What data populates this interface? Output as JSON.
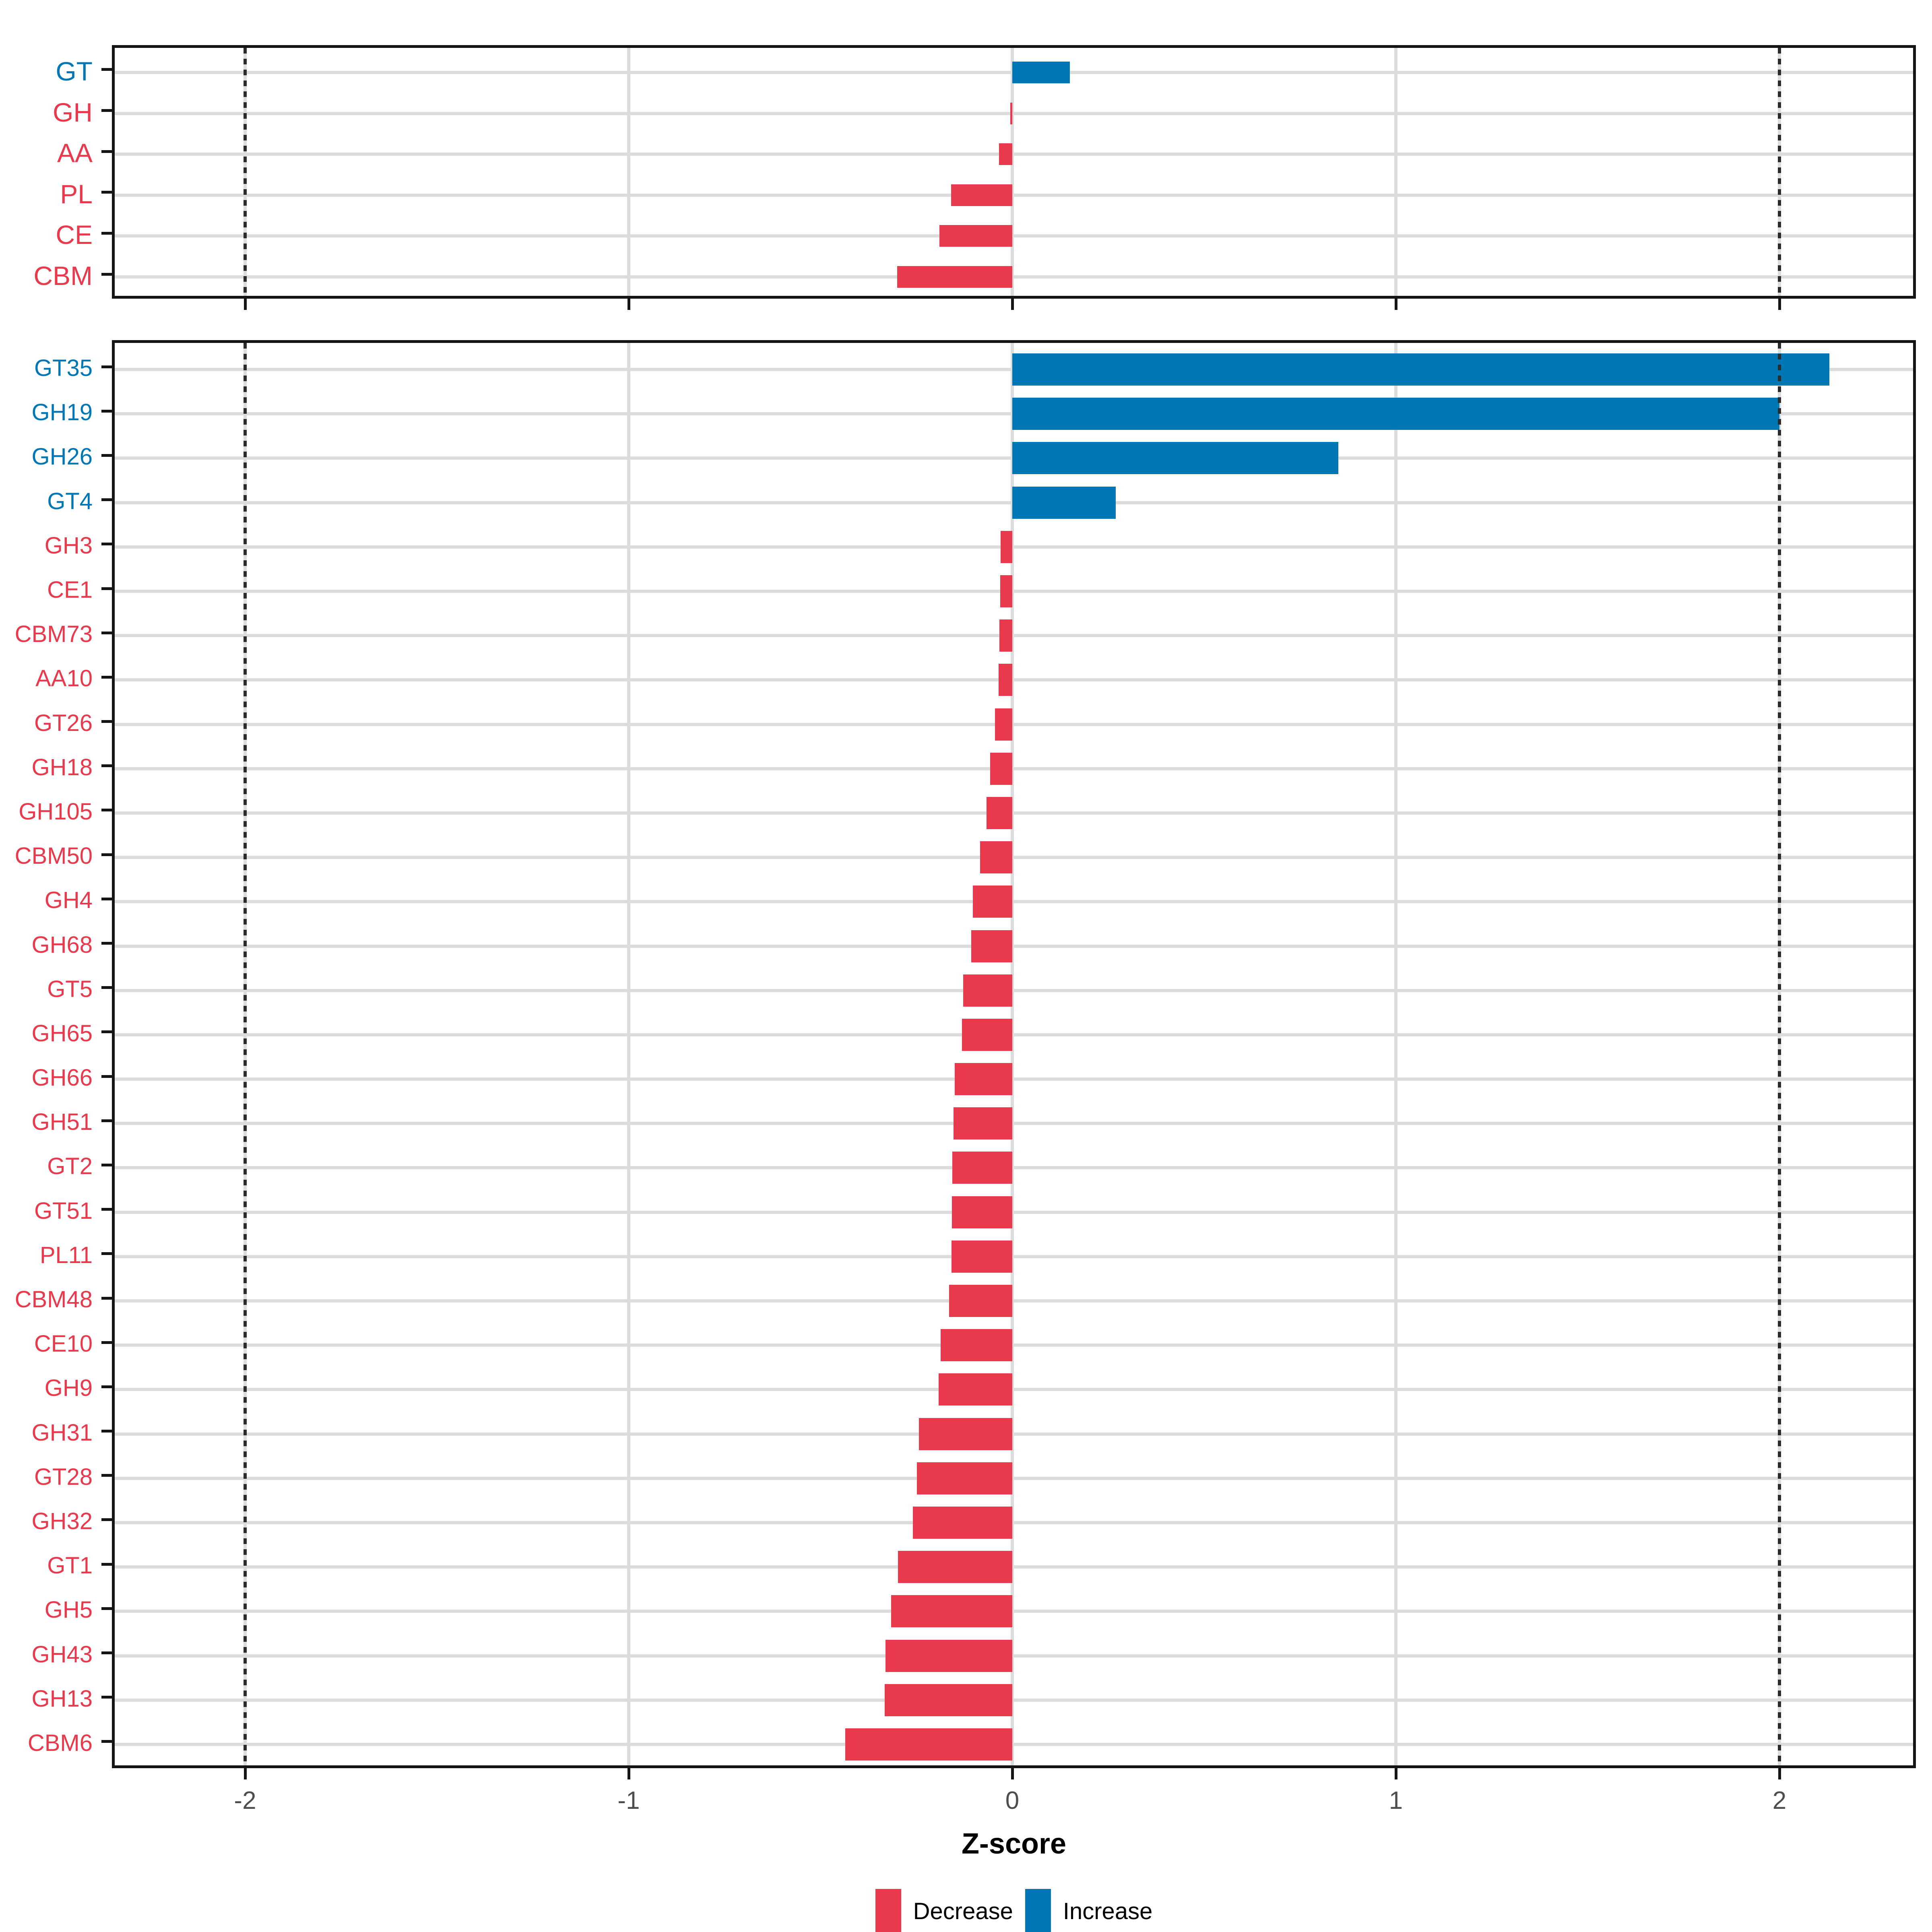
{
  "figure": {
    "background": "#ffffff"
  },
  "axis": {
    "title": "Z-score",
    "ticks": [
      "-2",
      "-1",
      "0",
      "1",
      "2"
    ],
    "tick_values": [
      -2,
      -1,
      0,
      1,
      2
    ],
    "range": [
      -2.35,
      2.36
    ],
    "reference_lines": [
      -2,
      2
    ]
  },
  "legend": {
    "items": [
      {
        "label": "Decrease",
        "color": "#E8394D"
      },
      {
        "label": "Increase",
        "color": "#0077B5"
      }
    ]
  },
  "colors": {
    "decrease": "#E8394D",
    "increase": "#0077B5",
    "grid": "#DCDCDC",
    "panel_border": "#141414",
    "tick_label": "#4d4d4d",
    "reference_line": "#2b2b2b"
  },
  "chart_data": [
    {
      "type": "bar",
      "orientation": "horizontal",
      "panel": "classes",
      "xlabel": "Z-score",
      "xlim": [
        -2.35,
        2.36
      ],
      "xticks": [
        -2,
        -1,
        0,
        1,
        2
      ],
      "reference_lines": [
        -2,
        2
      ],
      "grid": true,
      "legend_position": "bottom",
      "categories": [
        "GT",
        "GH",
        "AA",
        "PL",
        "CE",
        "CBM"
      ],
      "values": [
        0.15,
        -0.005,
        -0.035,
        -0.16,
        -0.19,
        -0.3
      ],
      "directions": [
        "Increase",
        "Decrease",
        "Decrease",
        "Decrease",
        "Decrease",
        "Decrease"
      ]
    },
    {
      "type": "bar",
      "orientation": "horizontal",
      "panel": "families",
      "xlabel": "Z-score",
      "xlim": [
        -2.35,
        2.36
      ],
      "xticks": [
        -2,
        -1,
        0,
        1,
        2
      ],
      "reference_lines": [
        -2,
        2
      ],
      "grid": true,
      "legend_position": "bottom",
      "categories": [
        "GT35",
        "GH19",
        "GH26",
        "GT4",
        "GH3",
        "CE1",
        "CBM73",
        "AA10",
        "GT26",
        "GH18",
        "GH105",
        "CBM50",
        "GH4",
        "GH68",
        "GT5",
        "GH65",
        "GH66",
        "GH51",
        "GT2",
        "GT51",
        "PL11",
        "CBM48",
        "CE10",
        "GH9",
        "GH31",
        "GT28",
        "GH32",
        "GT1",
        "GH5",
        "GH43",
        "GH13",
        "CBM6"
      ],
      "values": [
        2.13,
        2.0,
        0.85,
        0.27,
        -0.03,
        -0.032,
        -0.034,
        -0.036,
        -0.045,
        -0.058,
        -0.067,
        -0.084,
        -0.103,
        -0.107,
        -0.128,
        -0.131,
        -0.15,
        -0.153,
        -0.156,
        -0.157,
        -0.158,
        -0.165,
        -0.187,
        -0.192,
        -0.243,
        -0.249,
        -0.259,
        -0.298,
        -0.316,
        -0.331,
        -0.333,
        -0.435
      ],
      "directions": [
        "Increase",
        "Increase",
        "Increase",
        "Increase",
        "Decrease",
        "Decrease",
        "Decrease",
        "Decrease",
        "Decrease",
        "Decrease",
        "Decrease",
        "Decrease",
        "Decrease",
        "Decrease",
        "Decrease",
        "Decrease",
        "Decrease",
        "Decrease",
        "Decrease",
        "Decrease",
        "Decrease",
        "Decrease",
        "Decrease",
        "Decrease",
        "Decrease",
        "Decrease",
        "Decrease",
        "Decrease",
        "Decrease",
        "Decrease",
        "Decrease",
        "Decrease"
      ]
    }
  ]
}
